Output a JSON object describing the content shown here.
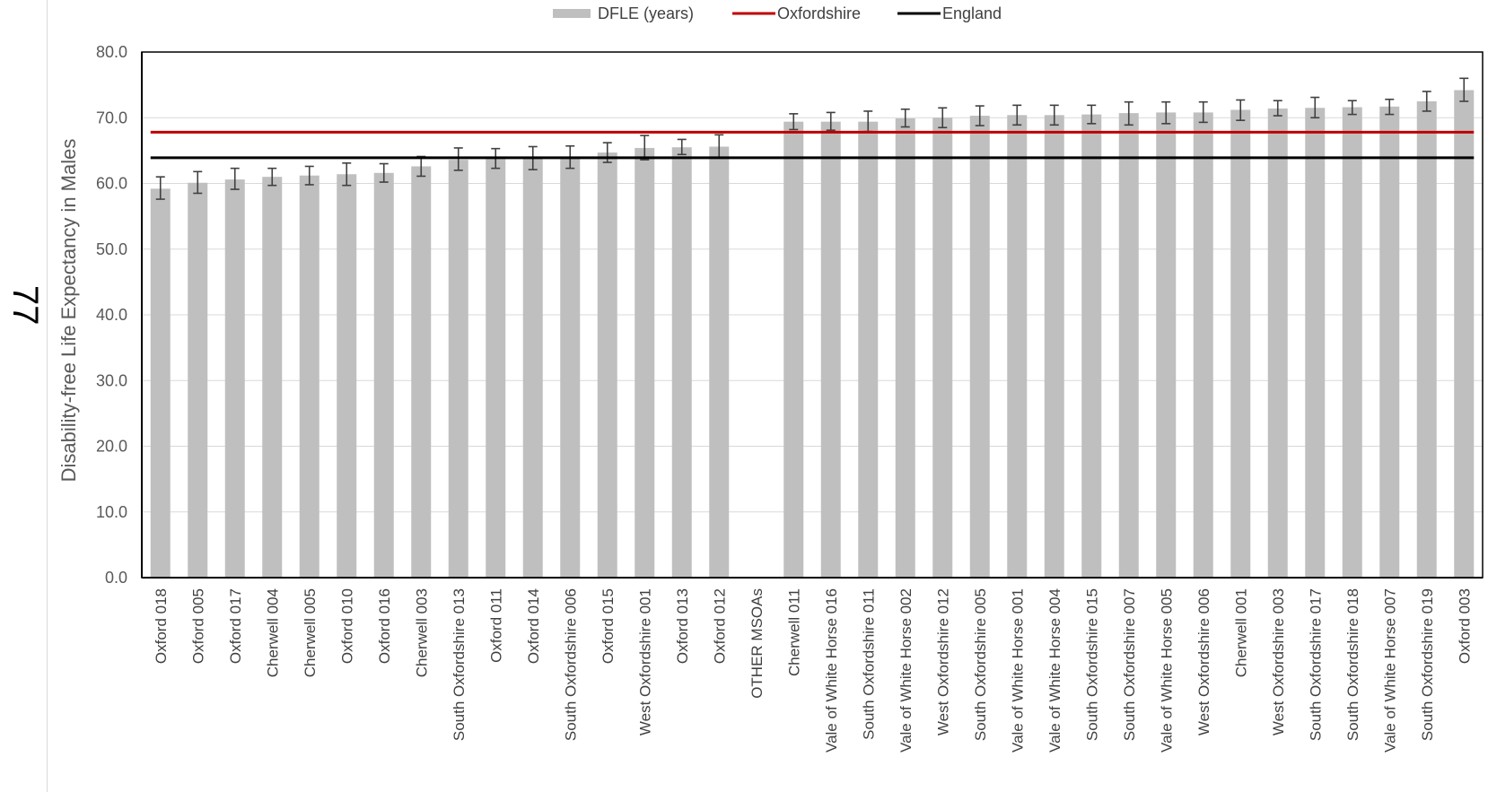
{
  "page": {
    "number": "77"
  },
  "chart_data": {
    "type": "bar",
    "ylabel": "Disability-free Life Expectancy in Males",
    "xlabel": "",
    "ylim": [
      0,
      80
    ],
    "yticks": [
      "0.0",
      "10.0",
      "20.0",
      "30.0",
      "40.0",
      "50.0",
      "60.0",
      "70.0",
      "80.0"
    ],
    "grid": true,
    "legend_position": "top",
    "categories": [
      "Oxford 018",
      "Oxford 005",
      "Oxford 017",
      "Cherwell 004",
      "Cherwell 005",
      "Oxford 010",
      "Oxford 016",
      "Cherwell 003",
      "South Oxfordshire 013",
      "Oxford 011",
      "Oxford 014",
      "South Oxfordshire 006",
      "Oxford 015",
      "West Oxfordshire 001",
      "Oxford 013",
      "Oxford 012",
      "OTHER MSOAs",
      "Cherwell 011",
      "Vale of White Horse 016",
      "South Oxfordshire 011",
      "Vale of White Horse 002",
      "West Oxfordshire 012",
      "South Oxfordshire 005",
      "Vale of White Horse 001",
      "Vale of White Horse 004",
      "South Oxfordshire 015",
      "South Oxfordshire 007",
      "Vale of White Horse 005",
      "West Oxfordshire 006",
      "Cherwell 001",
      "West Oxfordshire 003",
      "South Oxfordshire 017",
      "South Oxfordshire 018",
      "Vale of White Horse 007",
      "South Oxfordshire 019",
      "Oxford 003"
    ],
    "series": [
      {
        "name": "DFLE (years)",
        "color": "#bfbfbf",
        "values": [
          59.2,
          60.1,
          60.6,
          61.0,
          61.2,
          61.4,
          61.6,
          62.6,
          63.6,
          63.7,
          63.8,
          64.0,
          64.7,
          65.4,
          65.5,
          65.6,
          null,
          69.4,
          69.4,
          69.4,
          69.9,
          70.0,
          70.3,
          70.4,
          70.4,
          70.5,
          70.7,
          70.8,
          70.8,
          71.2,
          71.4,
          71.5,
          71.6,
          71.7,
          72.5,
          74.2
        ],
        "error_low": [
          57.6,
          58.5,
          59.1,
          59.7,
          59.8,
          59.7,
          60.2,
          61.1,
          62.0,
          62.3,
          62.1,
          62.3,
          63.2,
          63.6,
          64.4,
          63.9,
          null,
          68.2,
          68.1,
          67.9,
          68.6,
          68.5,
          68.8,
          68.9,
          68.9,
          69.1,
          68.9,
          69.1,
          69.3,
          69.6,
          70.3,
          70.0,
          70.5,
          70.5,
          71.0,
          72.5
        ],
        "error_high": [
          61.0,
          61.8,
          62.3,
          62.3,
          62.6,
          63.1,
          63.0,
          64.1,
          65.4,
          65.3,
          65.6,
          65.7,
          66.2,
          67.3,
          66.7,
          67.4,
          null,
          70.6,
          70.8,
          71.0,
          71.3,
          71.5,
          71.8,
          71.9,
          71.9,
          71.9,
          72.4,
          72.4,
          72.4,
          72.7,
          72.6,
          73.1,
          72.6,
          72.8,
          74.0,
          76.0
        ]
      },
      {
        "name": "Oxfordshire",
        "type": "line",
        "color": "#c00000",
        "value": 67.8
      },
      {
        "name": "England",
        "type": "line",
        "color": "#000000",
        "value": 63.9
      }
    ]
  }
}
